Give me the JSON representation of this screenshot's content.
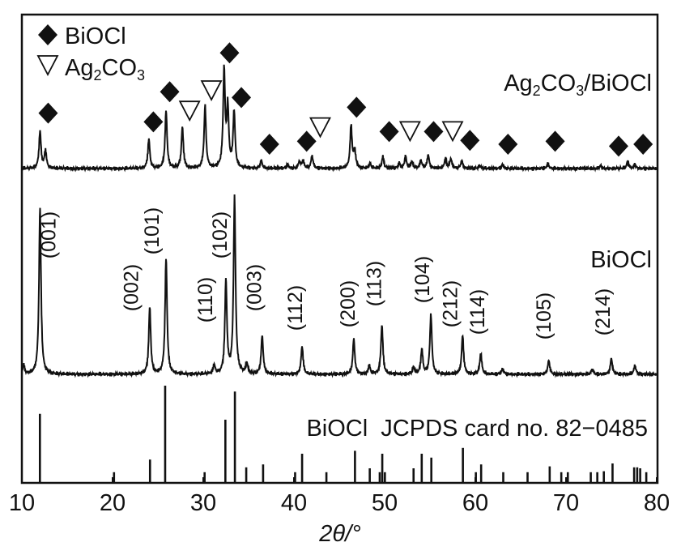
{
  "chart_data": {
    "type": "line",
    "title": "",
    "xlabel": "2θ/°",
    "ylabel": "",
    "xlim": [
      10,
      80
    ],
    "xticks": [
      "10",
      "20",
      "30",
      "40",
      "50",
      "60",
      "70",
      "80"
    ],
    "grid": false,
    "legend": {
      "placement": "top-left",
      "entries": [
        {
          "marker": "filled-diamond",
          "label": "BiOCl",
          "label_main": "BiOCl",
          "label_sub": ""
        },
        {
          "marker": "open-down-triangle",
          "label": "Ag2CO3",
          "label_main": "Ag",
          "label_sub": "2",
          "label_rest": "CO",
          "label_sub2": "3"
        }
      ]
    },
    "series": [
      {
        "name": "Ag2CO3/BiOCl",
        "label_parts": [
          "Ag",
          "2",
          "CO",
          "3",
          "/BiOCl"
        ],
        "peaks": [
          [
            12.0,
            38
          ],
          [
            12.6,
            18
          ],
          [
            24.0,
            30
          ],
          [
            25.9,
            59
          ],
          [
            27.7,
            42
          ],
          [
            30.2,
            64
          ],
          [
            32.3,
            100
          ],
          [
            32.7,
            60
          ],
          [
            33.4,
            58
          ],
          [
            36.4,
            8
          ],
          [
            39.3,
            4
          ],
          [
            40.6,
            7
          ],
          [
            41.0,
            8
          ],
          [
            42.0,
            13
          ],
          [
            46.3,
            44
          ],
          [
            46.7,
            18
          ],
          [
            48.4,
            5
          ],
          [
            49.8,
            12
          ],
          [
            51.6,
            5
          ],
          [
            52.3,
            12
          ],
          [
            53.0,
            7
          ],
          [
            54.0,
            8
          ],
          [
            54.8,
            14
          ],
          [
            56.7,
            10
          ],
          [
            57.3,
            10
          ],
          [
            58.5,
            8
          ],
          [
            60.5,
            3
          ],
          [
            63.0,
            4
          ],
          [
            68.0,
            5
          ],
          [
            73.8,
            3
          ],
          [
            76.8,
            7
          ],
          [
            77.6,
            4
          ]
        ],
        "markers": [
          {
            "type": "BiOCl",
            "x": 12.9,
            "level": 57
          },
          {
            "type": "BiOCl",
            "x": 24.5,
            "level": 48
          },
          {
            "type": "BiOCl",
            "x": 26.3,
            "level": 79
          },
          {
            "type": "BiOCl",
            "x": 32.9,
            "level": 119
          },
          {
            "type": "BiOCl",
            "x": 34.2,
            "level": 73
          },
          {
            "type": "BiOCl",
            "x": 37.3,
            "level": 25
          },
          {
            "type": "BiOCl",
            "x": 41.4,
            "level": 28
          },
          {
            "type": "BiOCl",
            "x": 46.9,
            "level": 63
          },
          {
            "type": "BiOCl",
            "x": 50.5,
            "level": 38
          },
          {
            "type": "BiOCl",
            "x": 55.4,
            "level": 38
          },
          {
            "type": "BiOCl",
            "x": 59.4,
            "level": 29
          },
          {
            "type": "BiOCl",
            "x": 63.6,
            "level": 25
          },
          {
            "type": "BiOCl",
            "x": 68.8,
            "level": 28
          },
          {
            "type": "BiOCl",
            "x": 75.8,
            "level": 23
          },
          {
            "type": "BiOCl",
            "x": 78.5,
            "level": 25
          },
          {
            "type": "Ag2CO3",
            "x": 28.5,
            "level": 59
          },
          {
            "type": "Ag2CO3",
            "x": 30.9,
            "level": 80
          },
          {
            "type": "Ag2CO3",
            "x": 42.9,
            "level": 42
          },
          {
            "type": "Ag2CO3",
            "x": 52.8,
            "level": 38
          },
          {
            "type": "Ag2CO3",
            "x": 57.5,
            "level": 38
          }
        ]
      },
      {
        "name": "BiOCl",
        "label": "BiOCl",
        "peaks": [
          [
            10.2,
            5
          ],
          [
            12.0,
            95
          ],
          [
            24.1,
            38
          ],
          [
            25.9,
            66
          ],
          [
            31.2,
            5
          ],
          [
            32.5,
            53
          ],
          [
            33.45,
            100
          ],
          [
            34.8,
            6
          ],
          [
            36.5,
            22
          ],
          [
            40.9,
            16
          ],
          [
            46.6,
            20
          ],
          [
            48.3,
            5
          ],
          [
            49.7,
            28
          ],
          [
            53.2,
            4
          ],
          [
            54.1,
            14
          ],
          [
            55.1,
            34
          ],
          [
            58.6,
            22
          ],
          [
            60.6,
            12
          ],
          [
            63.0,
            3
          ],
          [
            68.1,
            8
          ],
          [
            72.9,
            3
          ],
          [
            75.0,
            9
          ],
          [
            77.6,
            5
          ]
        ],
        "hkl_labels": [
          {
            "x": 12.9,
            "label": "(001)"
          },
          {
            "x": 22.0,
            "label": "(002)"
          },
          {
            "x": 24.3,
            "label": "(101)"
          },
          {
            "x": 30.2,
            "label": "(110)"
          },
          {
            "x": 31.8,
            "label": "(102)"
          },
          {
            "x": 35.6,
            "label": "(003)"
          },
          {
            "x": 40.1,
            "label": "(112)"
          },
          {
            "x": 45.9,
            "label": "(200)"
          },
          {
            "x": 48.8,
            "label": "(113)"
          },
          {
            "x": 54.1,
            "label": "(104)"
          },
          {
            "x": 57.2,
            "label": "(212)"
          },
          {
            "x": 60.2,
            "label": "(114)"
          },
          {
            "x": 67.5,
            "label": "(105)"
          },
          {
            "x": 74.0,
            "label": "(214)"
          }
        ]
      },
      {
        "name": "BiOCl JCPDS card no. 82-0485",
        "label": "BiOCl  JCPDS card no. 82−0485",
        "type": "stick",
        "sticks": [
          [
            11.99,
            71
          ],
          [
            20.16,
            11
          ],
          [
            24.13,
            24
          ],
          [
            25.8,
            100
          ],
          [
            30.15,
            11
          ],
          [
            32.44,
            65
          ],
          [
            33.49,
            94
          ],
          [
            34.74,
            16
          ],
          [
            36.6,
            19
          ],
          [
            40.13,
            11
          ],
          [
            40.9,
            30
          ],
          [
            43.58,
            11
          ],
          [
            46.73,
            33
          ],
          [
            48.36,
            15
          ],
          [
            49.46,
            11
          ],
          [
            49.74,
            30
          ],
          [
            50.03,
            11
          ],
          [
            53.19,
            15
          ],
          [
            54.09,
            30
          ],
          [
            55.15,
            26
          ],
          [
            58.63,
            36
          ],
          [
            60.06,
            11
          ],
          [
            60.64,
            19
          ],
          [
            63.08,
            11
          ],
          [
            65.76,
            11
          ],
          [
            68.2,
            17
          ],
          [
            69.48,
            11
          ],
          [
            70.2,
            11
          ],
          [
            72.73,
            11
          ],
          [
            73.45,
            11
          ],
          [
            74.17,
            12
          ],
          [
            75.13,
            20
          ],
          [
            77.51,
            16
          ],
          [
            77.85,
            16
          ],
          [
            78.18,
            15
          ],
          [
            78.85,
            11
          ]
        ]
      }
    ]
  }
}
